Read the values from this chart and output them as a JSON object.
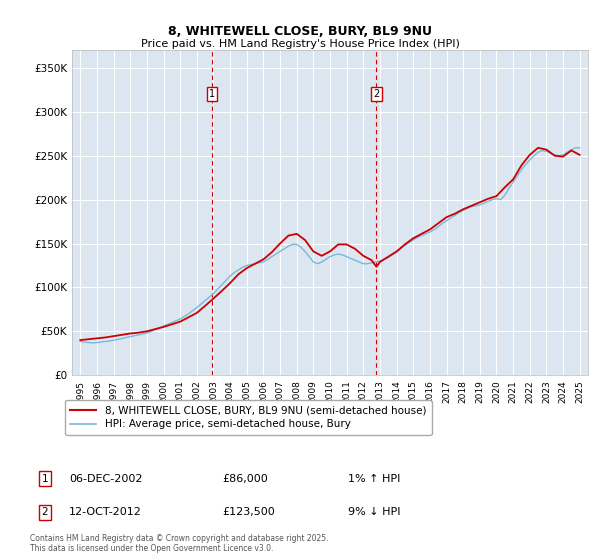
{
  "title": "8, WHITEWELL CLOSE, BURY, BL9 9NU",
  "subtitle": "Price paid vs. HM Land Registry's House Price Index (HPI)",
  "ylim": [
    0,
    370000
  ],
  "yticks": [
    0,
    50000,
    100000,
    150000,
    200000,
    250000,
    300000,
    350000
  ],
  "ytick_labels": [
    "£0",
    "£50K",
    "£100K",
    "£150K",
    "£200K",
    "£250K",
    "£300K",
    "£350K"
  ],
  "background_color": "#dce6f1",
  "grid_color": "#ffffff",
  "purchase1": {
    "date_num": 2002.92,
    "price": 86000,
    "label": "1",
    "date_str": "06-DEC-2002",
    "pct": "1%",
    "dir": "↑"
  },
  "purchase2": {
    "date_num": 2012.79,
    "price": 123500,
    "label": "2",
    "date_str": "12-OCT-2012",
    "pct": "9%",
    "dir": "↓"
  },
  "hpi_line_color": "#7ab8d9",
  "price_line_color": "#cc0000",
  "dashed_line_color": "#cc0000",
  "marker_box_color": "#cc0000",
  "legend_label_price": "8, WHITEWELL CLOSE, BURY, BL9 9NU (semi-detached house)",
  "legend_label_hpi": "HPI: Average price, semi-detached house, Bury",
  "footer": "Contains HM Land Registry data © Crown copyright and database right 2025.\nThis data is licensed under the Open Government Licence v3.0.",
  "hpi_data": [
    [
      1995.0,
      38500
    ],
    [
      1995.25,
      37800
    ],
    [
      1995.5,
      37200
    ],
    [
      1995.75,
      36800
    ],
    [
      1996.0,
      37200
    ],
    [
      1996.25,
      37800
    ],
    [
      1996.5,
      38400
    ],
    [
      1996.75,
      39000
    ],
    [
      1997.0,
      39800
    ],
    [
      1997.25,
      40800
    ],
    [
      1997.5,
      41800
    ],
    [
      1997.75,
      43000
    ],
    [
      1998.0,
      44000
    ],
    [
      1998.25,
      45000
    ],
    [
      1998.5,
      46000
    ],
    [
      1998.75,
      47000
    ],
    [
      1999.0,
      48000
    ],
    [
      1999.25,
      50000
    ],
    [
      1999.5,
      52000
    ],
    [
      1999.75,
      54000
    ],
    [
      2000.0,
      56000
    ],
    [
      2000.25,
      58000
    ],
    [
      2000.5,
      60000
    ],
    [
      2000.75,
      62000
    ],
    [
      2001.0,
      64000
    ],
    [
      2001.25,
      67000
    ],
    [
      2001.5,
      70000
    ],
    [
      2001.75,
      73500
    ],
    [
      2002.0,
      77000
    ],
    [
      2002.25,
      81000
    ],
    [
      2002.5,
      85000
    ],
    [
      2002.75,
      89000
    ],
    [
      2003.0,
      93000
    ],
    [
      2003.25,
      98000
    ],
    [
      2003.5,
      103000
    ],
    [
      2003.75,
      108000
    ],
    [
      2004.0,
      113000
    ],
    [
      2004.25,
      117000
    ],
    [
      2004.5,
      120000
    ],
    [
      2004.75,
      123000
    ],
    [
      2005.0,
      125000
    ],
    [
      2005.25,
      126000
    ],
    [
      2005.5,
      127000
    ],
    [
      2005.75,
      128000
    ],
    [
      2006.0,
      129000
    ],
    [
      2006.25,
      132000
    ],
    [
      2006.5,
      135000
    ],
    [
      2006.75,
      138000
    ],
    [
      2007.0,
      141000
    ],
    [
      2007.25,
      144000
    ],
    [
      2007.5,
      147000
    ],
    [
      2007.75,
      149000
    ],
    [
      2008.0,
      149000
    ],
    [
      2008.25,
      146000
    ],
    [
      2008.5,
      141000
    ],
    [
      2008.75,
      135000
    ],
    [
      2009.0,
      129000
    ],
    [
      2009.25,
      127000
    ],
    [
      2009.5,
      129000
    ],
    [
      2009.75,
      132000
    ],
    [
      2010.0,
      135000
    ],
    [
      2010.25,
      137000
    ],
    [
      2010.5,
      138000
    ],
    [
      2010.75,
      137000
    ],
    [
      2011.0,
      135000
    ],
    [
      2011.25,
      133000
    ],
    [
      2011.5,
      131000
    ],
    [
      2011.75,
      129000
    ],
    [
      2012.0,
      127000
    ],
    [
      2012.25,
      127000
    ],
    [
      2012.5,
      128000
    ],
    [
      2012.75,
      129000
    ],
    [
      2013.0,
      130000
    ],
    [
      2013.25,
      132000
    ],
    [
      2013.5,
      134000
    ],
    [
      2013.75,
      137000
    ],
    [
      2014.0,
      140000
    ],
    [
      2014.25,
      144000
    ],
    [
      2014.5,
      148000
    ],
    [
      2014.75,
      151000
    ],
    [
      2015.0,
      154000
    ],
    [
      2015.25,
      157000
    ],
    [
      2015.5,
      159000
    ],
    [
      2015.75,
      161000
    ],
    [
      2016.0,
      163000
    ],
    [
      2016.25,
      166000
    ],
    [
      2016.5,
      169000
    ],
    [
      2016.75,
      173000
    ],
    [
      2017.0,
      176000
    ],
    [
      2017.25,
      179000
    ],
    [
      2017.5,
      182000
    ],
    [
      2017.75,
      185000
    ],
    [
      2018.0,
      188000
    ],
    [
      2018.25,
      190000
    ],
    [
      2018.5,
      192000
    ],
    [
      2018.75,
      193000
    ],
    [
      2019.0,
      194000
    ],
    [
      2019.25,
      196000
    ],
    [
      2019.5,
      198000
    ],
    [
      2019.75,
      200000
    ],
    [
      2020.0,
      201000
    ],
    [
      2020.25,
      200000
    ],
    [
      2020.5,
      205000
    ],
    [
      2020.75,
      213000
    ],
    [
      2021.0,
      220000
    ],
    [
      2021.25,
      227000
    ],
    [
      2021.5,
      234000
    ],
    [
      2021.75,
      240000
    ],
    [
      2022.0,
      245000
    ],
    [
      2022.25,
      250000
    ],
    [
      2022.5,
      254000
    ],
    [
      2022.75,
      256000
    ],
    [
      2023.0,
      255000
    ],
    [
      2023.25,
      253000
    ],
    [
      2023.5,
      251000
    ],
    [
      2023.75,
      250000
    ],
    [
      2024.0,
      251000
    ],
    [
      2024.25,
      254000
    ],
    [
      2024.5,
      257000
    ],
    [
      2024.75,
      259000
    ],
    [
      2025.0,
      259000
    ]
  ],
  "price_data": [
    [
      1995.0,
      40000
    ],
    [
      1995.5,
      41000
    ],
    [
      1996.0,
      42000
    ],
    [
      1996.5,
      43000
    ],
    [
      1997.0,
      44500
    ],
    [
      1997.5,
      46000
    ],
    [
      1998.0,
      47500
    ],
    [
      1998.5,
      48500
    ],
    [
      1999.0,
      50000
    ],
    [
      1999.5,
      52500
    ],
    [
      2000.0,
      55000
    ],
    [
      2000.5,
      58000
    ],
    [
      2001.0,
      61000
    ],
    [
      2001.5,
      66000
    ],
    [
      2002.0,
      71000
    ],
    [
      2002.5,
      79000
    ],
    [
      2002.92,
      86000
    ],
    [
      2003.5,
      96000
    ],
    [
      2004.0,
      105000
    ],
    [
      2004.5,
      115000
    ],
    [
      2005.0,
      122000
    ],
    [
      2005.5,
      127000
    ],
    [
      2006.0,
      132000
    ],
    [
      2006.5,
      140000
    ],
    [
      2007.0,
      150000
    ],
    [
      2007.5,
      159000
    ],
    [
      2008.0,
      161000
    ],
    [
      2008.5,
      154000
    ],
    [
      2009.0,
      141000
    ],
    [
      2009.5,
      136000
    ],
    [
      2010.0,
      141000
    ],
    [
      2010.5,
      149000
    ],
    [
      2011.0,
      149000
    ],
    [
      2011.5,
      144000
    ],
    [
      2012.0,
      136000
    ],
    [
      2012.5,
      131000
    ],
    [
      2012.79,
      123500
    ],
    [
      2013.0,
      129000
    ],
    [
      2013.5,
      135000
    ],
    [
      2014.0,
      141000
    ],
    [
      2014.5,
      149000
    ],
    [
      2015.0,
      156000
    ],
    [
      2015.5,
      161000
    ],
    [
      2016.0,
      166000
    ],
    [
      2016.5,
      173000
    ],
    [
      2017.0,
      180000
    ],
    [
      2017.5,
      184000
    ],
    [
      2018.0,
      189000
    ],
    [
      2018.5,
      193000
    ],
    [
      2019.0,
      197000
    ],
    [
      2019.5,
      201000
    ],
    [
      2020.0,
      204000
    ],
    [
      2020.5,
      214000
    ],
    [
      2021.0,
      223000
    ],
    [
      2021.5,
      239000
    ],
    [
      2022.0,
      251000
    ],
    [
      2022.5,
      259000
    ],
    [
      2023.0,
      257000
    ],
    [
      2023.5,
      250000
    ],
    [
      2024.0,
      249000
    ],
    [
      2024.5,
      256000
    ],
    [
      2025.0,
      251000
    ]
  ],
  "xlim": [
    1994.5,
    2025.5
  ],
  "xticks": [
    1995,
    1996,
    1997,
    1998,
    1999,
    2000,
    2001,
    2002,
    2003,
    2004,
    2005,
    2006,
    2007,
    2008,
    2009,
    2010,
    2011,
    2012,
    2013,
    2014,
    2015,
    2016,
    2017,
    2018,
    2019,
    2020,
    2021,
    2022,
    2023,
    2024,
    2025
  ]
}
